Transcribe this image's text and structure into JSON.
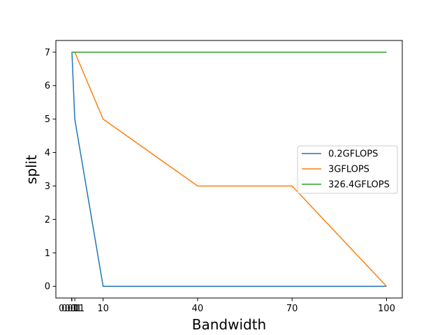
{
  "chart_data": {
    "type": "line",
    "title": "",
    "xlabel": "Bandwidth",
    "ylabel": "split",
    "xlim": [
      -4.9995,
      104.9995
    ],
    "ylim": [
      -0.35,
      7.35
    ],
    "xticks": [
      {
        "value": 0.001,
        "label": "0.001"
      },
      {
        "value": 0.01,
        "label": "0.01"
      },
      {
        "value": 0.1,
        "label": "0.1"
      },
      {
        "value": 1,
        "label": "1"
      },
      {
        "value": 10,
        "label": "10"
      },
      {
        "value": 40,
        "label": "40"
      },
      {
        "value": 70,
        "label": "70"
      },
      {
        "value": 100,
        "label": "100"
      }
    ],
    "yticks": [
      0,
      1,
      2,
      3,
      4,
      5,
      6,
      7
    ],
    "x": [
      0.001,
      0.01,
      0.1,
      1,
      10,
      40,
      70,
      100
    ],
    "series": [
      {
        "name": "0.2GFLOPS",
        "color": "#1f77b4",
        "values": [
          7,
          7,
          7,
          5,
          0,
          0,
          0,
          0
        ]
      },
      {
        "name": "3GFLOPS",
        "color": "#ff7f0e",
        "values": [
          7,
          7,
          7,
          7,
          5,
          3,
          3,
          0
        ]
      },
      {
        "name": "326.4GFLOPS",
        "color": "#2ca02c",
        "values": [
          7,
          7,
          7,
          7,
          7,
          7,
          7,
          7
        ]
      }
    ],
    "grid": false,
    "legend_position": "center-right"
  }
}
